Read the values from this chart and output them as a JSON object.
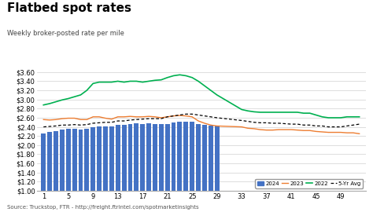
{
  "title": "Flatbed spot rates",
  "subtitle": "Weekly broker-posted rate per mile",
  "source": "Source: Truckstop, FTR - http://freight.ftrintel.com/spotmarketinsights",
  "ylim": [
    1.0,
    3.6
  ],
  "yticks": [
    1.0,
    1.2,
    1.4,
    1.6,
    1.8,
    2.0,
    2.2,
    2.4,
    2.6,
    2.8,
    3.0,
    3.2,
    3.4,
    3.6
  ],
  "bar_color": "#4472C4",
  "line_2023_color": "#ED7D31",
  "line_2022_color": "#00B050",
  "line_5yr_color": "#000000",
  "weeks_2024": [
    1,
    2,
    3,
    4,
    5,
    6,
    7,
    8,
    9,
    10,
    11,
    12,
    13,
    14,
    15,
    16,
    17,
    18,
    19,
    20,
    21,
    22,
    23,
    24,
    25,
    26,
    27,
    28,
    29
  ],
  "values_2024": [
    2.26,
    2.29,
    2.3,
    2.34,
    2.35,
    2.35,
    2.34,
    2.36,
    2.4,
    2.41,
    2.41,
    2.41,
    2.44,
    2.44,
    2.47,
    2.48,
    2.47,
    2.48,
    2.46,
    2.46,
    2.47,
    2.5,
    2.51,
    2.52,
    2.52,
    2.47,
    2.44,
    2.43,
    2.42
  ],
  "weeks_all": [
    1,
    2,
    3,
    4,
    5,
    6,
    7,
    8,
    9,
    10,
    11,
    12,
    13,
    14,
    15,
    16,
    17,
    18,
    19,
    20,
    21,
    22,
    23,
    24,
    25,
    26,
    27,
    28,
    29,
    33,
    34,
    35,
    36,
    37,
    38,
    39,
    40,
    41,
    42,
    43,
    44,
    45,
    46,
    47,
    48,
    49,
    50,
    51,
    52
  ],
  "values_2023": [
    2.56,
    2.55,
    2.56,
    2.58,
    2.59,
    2.59,
    2.56,
    2.56,
    2.62,
    2.62,
    2.59,
    2.57,
    2.62,
    2.62,
    2.63,
    2.62,
    2.62,
    2.63,
    2.62,
    2.6,
    2.62,
    2.64,
    2.65,
    2.64,
    2.62,
    2.53,
    2.48,
    2.44,
    2.42,
    2.4,
    2.37,
    2.36,
    2.34,
    2.33,
    2.33,
    2.34,
    2.34,
    2.34,
    2.33,
    2.32,
    2.32,
    2.3,
    2.29,
    2.28,
    2.28,
    2.28,
    2.27,
    2.27,
    2.25
  ],
  "values_2022": [
    2.88,
    2.91,
    2.95,
    2.99,
    3.02,
    3.06,
    3.1,
    3.2,
    3.35,
    3.38,
    3.38,
    3.38,
    3.4,
    3.38,
    3.4,
    3.4,
    3.38,
    3.4,
    3.42,
    3.43,
    3.48,
    3.52,
    3.54,
    3.52,
    3.48,
    3.4,
    3.3,
    3.2,
    3.1,
    2.78,
    2.75,
    2.73,
    2.72,
    2.72,
    2.72,
    2.72,
    2.72,
    2.72,
    2.72,
    2.7,
    2.7,
    2.66,
    2.62,
    2.6,
    2.6,
    2.6,
    2.62,
    2.62,
    2.62
  ],
  "values_5yr": [
    2.4,
    2.41,
    2.42,
    2.44,
    2.44,
    2.45,
    2.44,
    2.45,
    2.48,
    2.49,
    2.5,
    2.5,
    2.53,
    2.53,
    2.55,
    2.56,
    2.57,
    2.58,
    2.58,
    2.58,
    2.62,
    2.64,
    2.66,
    2.68,
    2.68,
    2.66,
    2.64,
    2.62,
    2.6,
    2.54,
    2.52,
    2.5,
    2.49,
    2.49,
    2.48,
    2.48,
    2.47,
    2.46,
    2.46,
    2.44,
    2.44,
    2.42,
    2.42,
    2.4,
    2.4,
    2.4,
    2.42,
    2.44,
    2.46
  ],
  "xticks_shown": [
    1,
    5,
    9,
    13,
    17,
    21,
    25,
    29,
    33,
    37,
    41,
    45,
    49
  ],
  "bar_width": 0.75,
  "title_fontsize": 11,
  "subtitle_fontsize": 6,
  "tick_fontsize": 6,
  "source_fontsize": 5
}
